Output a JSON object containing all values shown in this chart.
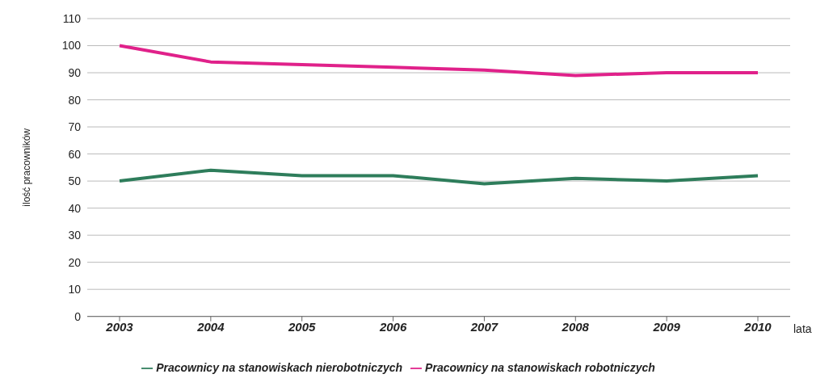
{
  "chart_data": {
    "type": "line",
    "xlabel": "lata",
    "ylabel": "ilość pracowników",
    "categories": [
      "2003",
      "2004",
      "2005",
      "2006",
      "2007",
      "2008",
      "2009",
      "2010"
    ],
    "series": [
      {
        "name": "Pracownicy na stanowiskach nierobotniczych",
        "color": "#2e7d5b",
        "values": [
          50,
          54,
          52,
          52,
          49,
          51,
          50,
          52
        ]
      },
      {
        "name": "Pracownicy na stanowiskach robotniczych",
        "color": "#e0218a",
        "values": [
          100,
          94,
          93,
          92,
          91,
          89,
          90,
          90
        ]
      }
    ],
    "ylim": [
      0,
      110
    ],
    "yticks": [
      0,
      10,
      20,
      30,
      40,
      50,
      60,
      70,
      80,
      90,
      100,
      110
    ],
    "grid": "y",
    "legend": "bottom",
    "marker": "none",
    "line_style": "solid"
  }
}
